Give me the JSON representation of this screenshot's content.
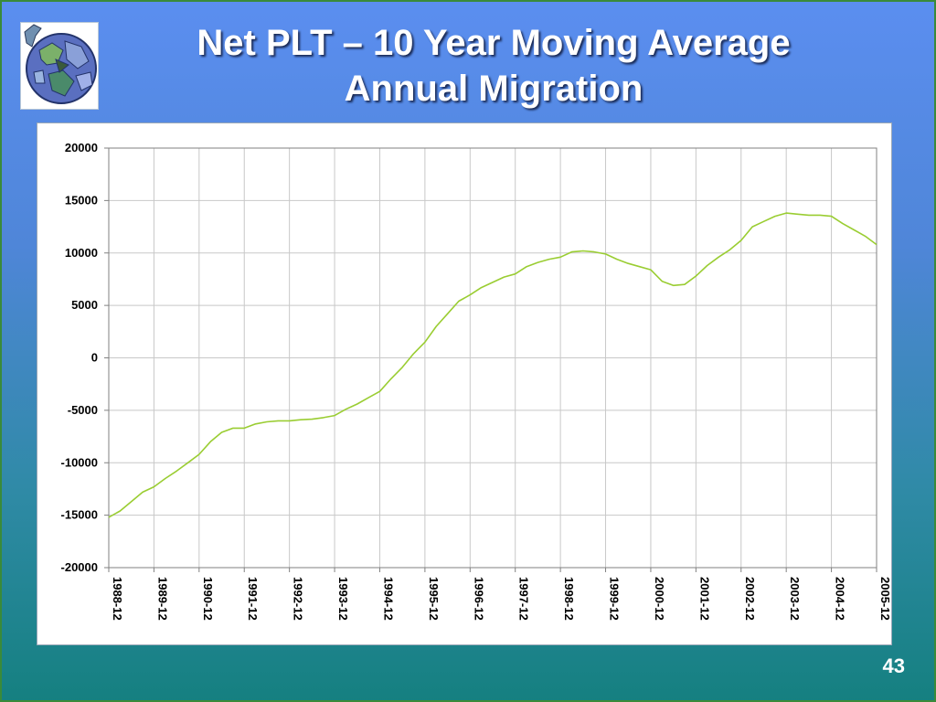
{
  "slide": {
    "title_line1": "Net PLT – 10 Year Moving Average",
    "title_line2": "Annual Migration",
    "slide_number": "43",
    "logo_icon": "globe-icon"
  },
  "chart_data": {
    "type": "line",
    "title": "",
    "xlabel": "",
    "ylabel": "",
    "ylim": [
      -20000,
      20000
    ],
    "y_ticks": [
      20000,
      15000,
      10000,
      5000,
      0,
      -5000,
      -10000,
      -15000,
      -20000
    ],
    "y_tick_labels": [
      "20000",
      "15000",
      "10000",
      "5000",
      "0",
      "-5000",
      "-10000",
      "-15000",
      "-20000"
    ],
    "x_tick_labels": [
      "1988-12",
      "1989-12",
      "1990-12",
      "1991-12",
      "1992-12",
      "1993-12",
      "1994-12",
      "1995-12",
      "1996-12",
      "1997-12",
      "1998-12",
      "1999-12",
      "2000-12",
      "2001-12",
      "2002-12",
      "2003-12",
      "2004-12",
      "2005-12"
    ],
    "grid": true,
    "line_color": "#9acd32",
    "series": [
      {
        "name": "",
        "points": [
          [
            "1988-12",
            -15200
          ],
          [
            "1989-03",
            -14600
          ],
          [
            "1989-06",
            -13700
          ],
          [
            "1989-09",
            -12800
          ],
          [
            "1989-12",
            -12300
          ],
          [
            "1990-03",
            -11500
          ],
          [
            "1990-06",
            -10800
          ],
          [
            "1990-09",
            -10000
          ],
          [
            "1990-12",
            -9200
          ],
          [
            "1991-03",
            -8000
          ],
          [
            "1991-06",
            -7100
          ],
          [
            "1991-09",
            -6700
          ],
          [
            "1991-12",
            -6700
          ],
          [
            "1992-03",
            -6300
          ],
          [
            "1992-06",
            -6100
          ],
          [
            "1992-09",
            -6000
          ],
          [
            "1992-12",
            -6000
          ],
          [
            "1993-03",
            -5900
          ],
          [
            "1993-06",
            -5850
          ],
          [
            "1993-09",
            -5700
          ],
          [
            "1993-12",
            -5500
          ],
          [
            "1994-03",
            -4900
          ],
          [
            "1994-06",
            -4400
          ],
          [
            "1994-09",
            -3800
          ],
          [
            "1994-12",
            -3200
          ],
          [
            "1995-03",
            -2000
          ],
          [
            "1995-06",
            -900
          ],
          [
            "1995-09",
            400
          ],
          [
            "1995-12",
            1500
          ],
          [
            "1996-03",
            3000
          ],
          [
            "1996-06",
            4200
          ],
          [
            "1996-09",
            5400
          ],
          [
            "1996-12",
            6000
          ],
          [
            "1997-03",
            6700
          ],
          [
            "1997-06",
            7200
          ],
          [
            "1997-09",
            7700
          ],
          [
            "1997-12",
            8000
          ],
          [
            "1998-03",
            8700
          ],
          [
            "1998-06",
            9100
          ],
          [
            "1998-09",
            9400
          ],
          [
            "1998-12",
            9600
          ],
          [
            "1999-03",
            10100
          ],
          [
            "1999-06",
            10200
          ],
          [
            "1999-09",
            10100
          ],
          [
            "1999-12",
            9900
          ],
          [
            "2000-03",
            9400
          ],
          [
            "2000-06",
            9000
          ],
          [
            "2000-09",
            8700
          ],
          [
            "2000-12",
            8400
          ],
          [
            "2001-03",
            7300
          ],
          [
            "2001-06",
            6900
          ],
          [
            "2001-09",
            7000
          ],
          [
            "2001-12",
            7800
          ],
          [
            "2002-03",
            8800
          ],
          [
            "2002-06",
            9600
          ],
          [
            "2002-09",
            10300
          ],
          [
            "2002-12",
            11200
          ],
          [
            "2003-03",
            12500
          ],
          [
            "2003-06",
            13000
          ],
          [
            "2003-09",
            13500
          ],
          [
            "2003-12",
            13800
          ],
          [
            "2004-03",
            13700
          ],
          [
            "2004-06",
            13600
          ],
          [
            "2004-09",
            13600
          ],
          [
            "2004-12",
            13500
          ],
          [
            "2005-03",
            12800
          ],
          [
            "2005-06",
            12200
          ],
          [
            "2005-09",
            11600
          ],
          [
            "2005-12",
            10800
          ]
        ]
      }
    ]
  }
}
